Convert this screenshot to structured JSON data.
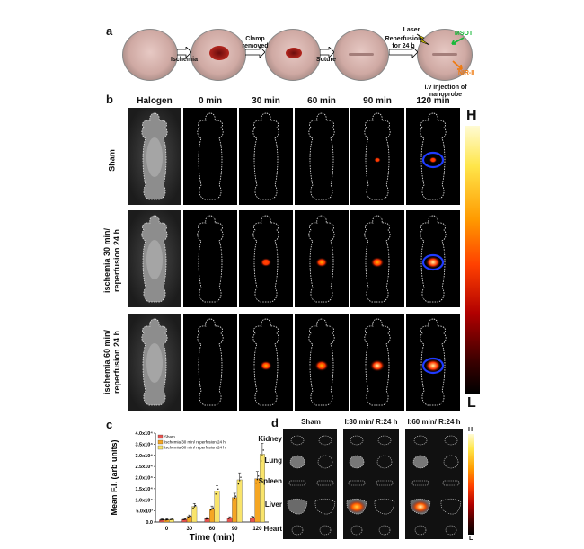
{
  "panel_a": {
    "letter": "a",
    "steps": [
      "Ischemia",
      "Clamp removed",
      "Suture",
      "Reperfusion for 24 h"
    ],
    "annotations": {
      "laser": "Laser",
      "msot": "MSOT",
      "nir": "NIR-II",
      "injection": "i.v injection of nanoprobe"
    }
  },
  "panel_b": {
    "letter": "b",
    "columns": [
      "Halogen",
      "0 min",
      "30 min",
      "60 min",
      "90 min",
      "120 min"
    ],
    "rows": [
      "Sham",
      "ischemia 30 min/ reperfusion 24 h",
      "ischemia 60 min/ reperfusion 24 h"
    ],
    "colorbar": {
      "high": "H",
      "low": "L"
    },
    "signal_levels": [
      [
        0,
        0,
        0,
        0,
        0.1,
        0.2
      ],
      [
        0,
        0,
        0.5,
        0.6,
        0.7,
        0.9
      ],
      [
        0,
        0,
        0.6,
        0.75,
        0.85,
        1.0
      ]
    ]
  },
  "panel_c": {
    "letter": "c",
    "chart_data": {
      "type": "bar",
      "title": "",
      "xlabel": "Time (min)",
      "ylabel": "Mean F.I. (arb units)",
      "categories": [
        "0",
        "30",
        "60",
        "90",
        "120"
      ],
      "ylim": [
        0,
        40000
      ],
      "yticks": [
        "0.0",
        "5.0x10³",
        "1.0x10⁴",
        "1.5x10⁴",
        "2.0x10⁴",
        "2.5x10⁴",
        "3.0x10⁴",
        "3.5x10⁴",
        "4.0x10⁴"
      ],
      "legend_position": "top-left",
      "series": [
        {
          "name": "Sham",
          "color": "#e8534f",
          "values": [
            1000,
            1200,
            1500,
            1800,
            2000
          ]
        },
        {
          "name": "Ischemia 30 min/ reperfusion 24 h",
          "color": "#f5a623",
          "values": [
            1000,
            2500,
            6000,
            11000,
            19500
          ]
        },
        {
          "name": "Ischemia 60 min/ reperfusion 24 h",
          "color": "#f9e46b",
          "values": [
            1200,
            7000,
            14000,
            19000,
            30500
          ]
        }
      ]
    }
  },
  "panel_d": {
    "letter": "d",
    "groups": [
      "Sham",
      "I:30 min/ R:24 h",
      "I:60 min/ R:24 h"
    ],
    "organs": [
      "Kidney",
      "Lung",
      "Spleen",
      "Liver",
      "Heart"
    ],
    "colorbar": {
      "high": "H",
      "low": "L"
    }
  }
}
